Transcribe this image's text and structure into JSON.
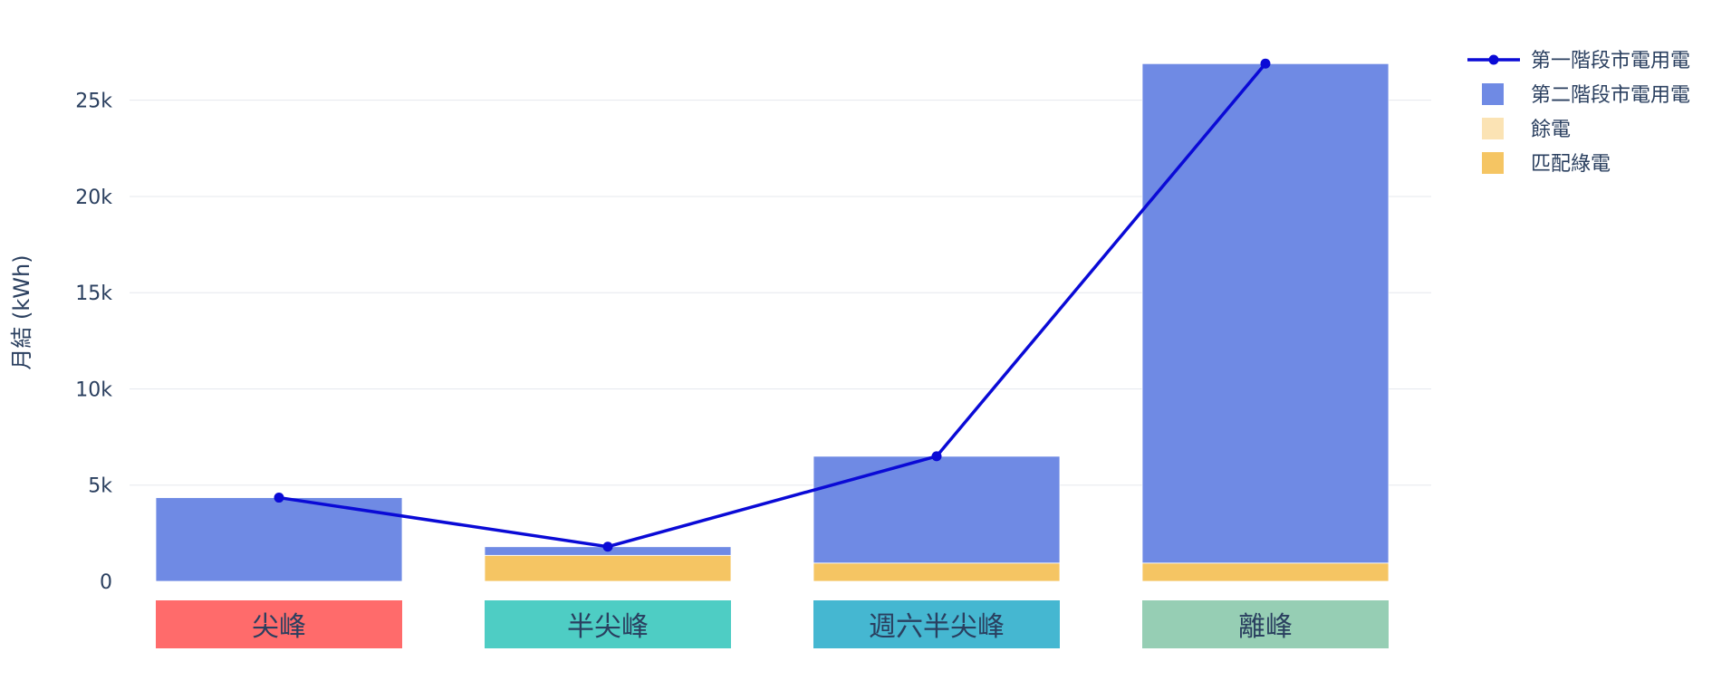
{
  "chart_data": {
    "type": "bar",
    "title": "",
    "xlabel": "",
    "ylabel": "月結 (kWh)",
    "ylim": [
      0,
      28000
    ],
    "yticks": [
      0,
      5000,
      10000,
      15000,
      20000,
      25000
    ],
    "ytick_labels": [
      "0",
      "5k",
      "10k",
      "15k",
      "20k",
      "25k"
    ],
    "grid": true,
    "legend_position": "top-right",
    "categories": [
      "尖峰",
      "半尖峰",
      "週六半尖峰",
      "離峰"
    ],
    "category_colors": [
      "#ff6b6b",
      "#4ecdc4",
      "#45b7d1",
      "#96ceb4"
    ],
    "stacked_series": [
      {
        "name": "匹配綠電",
        "color": "#f5c563",
        "values": [
          0,
          1350,
          950,
          950
        ]
      },
      {
        "name": "餘電",
        "color": "#fbe3b4",
        "values": [
          0,
          0,
          0,
          0
        ]
      },
      {
        "name": "第二階段市電用電",
        "color": "#6f8ae4",
        "values": [
          4350,
          450,
          5550,
          25950
        ]
      }
    ],
    "line_series": {
      "name": "第一階段市電用電",
      "color": "#0a0ad6",
      "values": [
        4350,
        1800,
        6500,
        26900
      ]
    },
    "legend_order": [
      "第一階段市電用電",
      "第二階段市電用電",
      "餘電",
      "匹配綠電"
    ]
  }
}
